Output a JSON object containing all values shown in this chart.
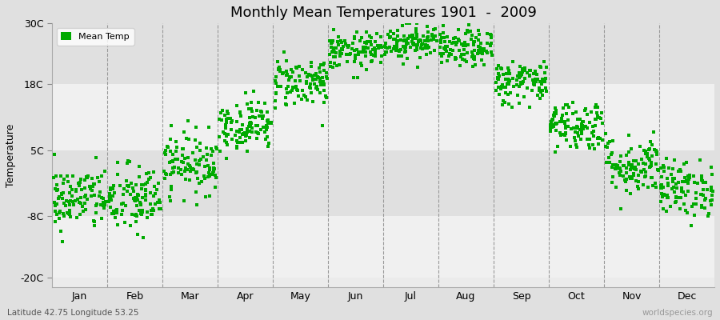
{
  "title": "Monthly Mean Temperatures 1901  -  2009",
  "ylabel": "Temperature",
  "xlabel_months": [
    "Jan",
    "Feb",
    "Mar",
    "Apr",
    "May",
    "Jun",
    "Jul",
    "Aug",
    "Sep",
    "Oct",
    "Nov",
    "Dec"
  ],
  "legend_label": "Mean Temp",
  "footnote_left": "Latitude 42.75 Longitude 53.25",
  "footnote_right": "worldspecies.org",
  "yticks": [
    -20,
    -8,
    5,
    18,
    30
  ],
  "ytick_labels": [
    "-20C",
    "-8C",
    "5C",
    "18C",
    "30C"
  ],
  "ylim_min": -22,
  "ylim_max": 30,
  "marker_color": "#00aa00",
  "bg_color": "#e0e0e0",
  "plot_bg_color": "#ebebeb",
  "band_color_light": "#f0f0f0",
  "band_color_dark": "#e0e0e0",
  "n_years": 109,
  "monthly_means": [
    -4.5,
    -4.8,
    2.5,
    10.0,
    18.5,
    24.5,
    26.5,
    25.0,
    18.5,
    10.0,
    2.0,
    -2.5
  ],
  "monthly_stds": [
    3.2,
    3.5,
    3.0,
    2.5,
    2.5,
    1.8,
    1.8,
    1.8,
    2.2,
    2.5,
    3.0,
    2.8
  ]
}
